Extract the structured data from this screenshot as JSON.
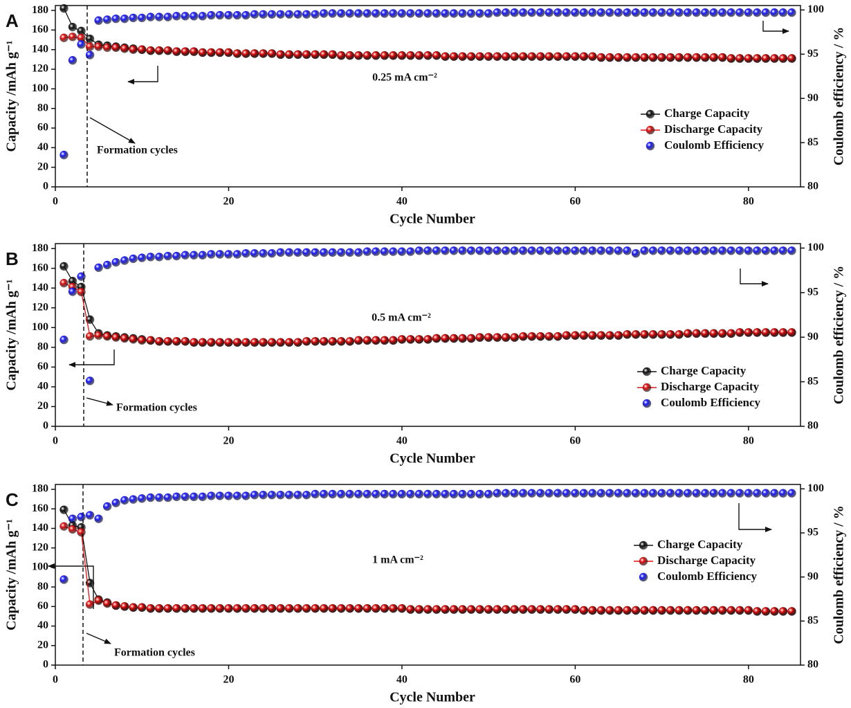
{
  "chart_data": [
    {
      "type": "line",
      "panel": "A",
      "xlabel": "Cycle Number",
      "ylabel": "Capacity /mAh g⁻¹",
      "y2label": "Coulomb efficiency / %",
      "annotations": [
        "0.25 mA cm⁻²",
        "Formation cycles"
      ],
      "legend": "right",
      "xlim": [
        0,
        86
      ],
      "xticks": [
        0,
        20,
        40,
        60,
        80
      ],
      "ylim": [
        0,
        185
      ],
      "yticks": [
        0,
        20,
        40,
        60,
        80,
        100,
        120,
        140,
        160,
        180
      ],
      "y2lim": [
        80,
        100.5
      ],
      "y2ticks": [
        80,
        85,
        90,
        95,
        100
      ],
      "x": [
        1,
        2,
        3,
        4,
        5,
        6,
        7,
        8,
        9,
        10,
        11,
        12,
        13,
        14,
        15,
        16,
        17,
        18,
        19,
        20,
        21,
        22,
        23,
        24,
        25,
        26,
        27,
        28,
        29,
        30,
        31,
        32,
        33,
        34,
        35,
        36,
        37,
        38,
        39,
        40,
        41,
        42,
        43,
        44,
        45,
        46,
        47,
        48,
        49,
        50,
        51,
        52,
        53,
        54,
        55,
        56,
        57,
        58,
        59,
        60,
        61,
        62,
        63,
        64,
        65,
        66,
        67,
        68,
        69,
        70,
        71,
        72,
        73,
        74,
        75,
        76,
        77,
        78,
        79,
        80,
        81,
        82,
        83,
        84,
        85
      ],
      "series": [
        {
          "name": "Charge Capacity",
          "color": "#111111",
          "mode": "lines+markers",
          "values": [
            182,
            163,
            159,
            151,
            145,
            144,
            143,
            142,
            141,
            140,
            139,
            139,
            139,
            138,
            138,
            138,
            137,
            137,
            137,
            137,
            136,
            136,
            136,
            136,
            136,
            135,
            135,
            135,
            135,
            135,
            135,
            135,
            134,
            134,
            134,
            134,
            134,
            134,
            134,
            134,
            134,
            134,
            134,
            134,
            133,
            133,
            133,
            133,
            133,
            133,
            133,
            133,
            133,
            133,
            133,
            133,
            133,
            133,
            133,
            133,
            133,
            133,
            132,
            132,
            132,
            132,
            132,
            132,
            132,
            132,
            132,
            132,
            132,
            132,
            132,
            132,
            132,
            131,
            131,
            131,
            131,
            131,
            131,
            131,
            131
          ]
        },
        {
          "name": "Discharge Capacity",
          "color": "#e01010",
          "mode": "lines+markers",
          "values": [
            152,
            153,
            152,
            143,
            143,
            142,
            142,
            141,
            140,
            140,
            139,
            139,
            139,
            138,
            138,
            138,
            137,
            137,
            137,
            137,
            136,
            136,
            136,
            136,
            136,
            135,
            135,
            135,
            135,
            135,
            135,
            135,
            134,
            134,
            134,
            134,
            134,
            134,
            134,
            134,
            134,
            134,
            134,
            134,
            133,
            133,
            133,
            133,
            133,
            133,
            133,
            133,
            133,
            133,
            133,
            133,
            133,
            133,
            133,
            133,
            133,
            133,
            132,
            132,
            132,
            132,
            132,
            132,
            132,
            132,
            132,
            132,
            132,
            132,
            132,
            132,
            132,
            131,
            131,
            131,
            131,
            131,
            131,
            131,
            131
          ]
        },
        {
          "name": "Coulomb Efficiency",
          "color": "#1a1aff",
          "mode": "markers",
          "axis": "y2",
          "values": [
            83.6,
            94.3,
            96.1,
            94.9,
            98.8,
            98.9,
            99.0,
            99.0,
            99.1,
            99.1,
            99.2,
            99.2,
            99.2,
            99.3,
            99.3,
            99.3,
            99.3,
            99.4,
            99.4,
            99.4,
            99.4,
            99.4,
            99.5,
            99.5,
            99.5,
            99.5,
            99.5,
            99.5,
            99.5,
            99.5,
            99.6,
            99.6,
            99.6,
            99.6,
            99.6,
            99.6,
            99.6,
            99.6,
            99.6,
            99.6,
            99.6,
            99.6,
            99.6,
            99.6,
            99.6,
            99.6,
            99.6,
            99.6,
            99.6,
            99.6,
            99.7,
            99.7,
            99.7,
            99.7,
            99.7,
            99.7,
            99.7,
            99.7,
            99.7,
            99.7,
            99.7,
            99.7,
            99.7,
            99.7,
            99.7,
            99.7,
            99.7,
            99.7,
            99.7,
            99.7,
            99.7,
            99.7,
            99.7,
            99.7,
            99.7,
            99.7,
            99.7,
            99.7,
            99.7,
            99.7,
            99.7,
            99.7,
            99.7,
            99.7,
            99.7
          ]
        }
      ]
    },
    {
      "type": "line",
      "panel": "B",
      "xlabel": "Cycle Number",
      "ylabel": "Capacity /mAh g⁻¹",
      "y2label": "Coulomb efficiency / %",
      "annotations": [
        "0.5 mA cm⁻²",
        "Formation cycles"
      ],
      "legend": "right",
      "xlim": [
        0,
        86
      ],
      "xticks": [
        0,
        20,
        40,
        60,
        80
      ],
      "ylim": [
        0,
        185
      ],
      "yticks": [
        0,
        20,
        40,
        60,
        80,
        100,
        120,
        140,
        160,
        180
      ],
      "y2lim": [
        80,
        100.5
      ],
      "y2ticks": [
        80,
        85,
        90,
        95,
        100
      ],
      "x": [
        1,
        2,
        3,
        4,
        5,
        6,
        7,
        8,
        9,
        10,
        11,
        12,
        13,
        14,
        15,
        16,
        17,
        18,
        19,
        20,
        21,
        22,
        23,
        24,
        25,
        26,
        27,
        28,
        29,
        30,
        31,
        32,
        33,
        34,
        35,
        36,
        37,
        38,
        39,
        40,
        41,
        42,
        43,
        44,
        45,
        46,
        47,
        48,
        49,
        50,
        51,
        52,
        53,
        54,
        55,
        56,
        57,
        58,
        59,
        60,
        61,
        62,
        63,
        64,
        65,
        66,
        67,
        68,
        69,
        70,
        71,
        72,
        73,
        74,
        75,
        76,
        77,
        78,
        79,
        80,
        81,
        82,
        83,
        84,
        85
      ],
      "series": [
        {
          "name": "Charge Capacity",
          "color": "#111111",
          "mode": "lines+markers",
          "values": [
            162,
            147,
            141,
            108,
            94,
            92,
            91,
            90,
            89,
            88,
            87,
            86,
            86,
            86,
            86,
            85,
            85,
            85,
            85,
            85,
            85,
            85,
            85,
            85,
            85,
            85,
            85,
            85,
            86,
            86,
            86,
            86,
            86,
            86,
            87,
            87,
            87,
            87,
            87,
            88,
            88,
            88,
            88,
            89,
            89,
            89,
            89,
            89,
            90,
            90,
            90,
            90,
            90,
            91,
            91,
            91,
            91,
            91,
            92,
            92,
            92,
            92,
            92,
            92,
            92,
            93,
            93,
            93,
            93,
            93,
            93,
            93,
            94,
            94,
            94,
            94,
            94,
            94,
            95,
            95,
            95,
            95,
            95,
            95,
            95
          ]
        },
        {
          "name": "Discharge Capacity",
          "color": "#e01010",
          "mode": "lines+markers",
          "values": [
            145,
            141,
            136,
            91,
            92,
            91,
            90,
            89,
            88,
            87,
            87,
            86,
            86,
            86,
            86,
            85,
            85,
            85,
            85,
            85,
            85,
            85,
            85,
            85,
            85,
            85,
            85,
            85,
            86,
            86,
            86,
            86,
            86,
            86,
            87,
            87,
            87,
            87,
            87,
            88,
            88,
            88,
            88,
            89,
            89,
            89,
            89,
            89,
            90,
            90,
            90,
            90,
            90,
            91,
            91,
            91,
            91,
            91,
            92,
            92,
            92,
            92,
            92,
            92,
            92,
            93,
            93,
            93,
            93,
            93,
            93,
            93,
            94,
            94,
            94,
            94,
            94,
            94,
            95,
            95,
            95,
            95,
            95,
            95,
            95
          ]
        },
        {
          "name": "Coulomb Efficiency",
          "color": "#1a1aff",
          "mode": "markers",
          "axis": "y2",
          "values": [
            89.7,
            95.1,
            96.8,
            85.1,
            97.8,
            98.1,
            98.4,
            98.6,
            98.8,
            98.9,
            99.0,
            99.0,
            99.1,
            99.1,
            99.2,
            99.2,
            99.2,
            99.3,
            99.3,
            99.3,
            99.3,
            99.4,
            99.4,
            99.4,
            99.4,
            99.5,
            99.5,
            99.5,
            99.5,
            99.5,
            99.5,
            99.5,
            99.5,
            99.5,
            99.5,
            99.6,
            99.6,
            99.6,
            99.6,
            99.6,
            99.6,
            99.7,
            99.7,
            99.7,
            99.7,
            99.7,
            99.7,
            99.7,
            99.7,
            99.7,
            99.7,
            99.7,
            99.7,
            99.7,
            99.7,
            99.7,
            99.7,
            99.7,
            99.7,
            99.7,
            99.7,
            99.7,
            99.7,
            99.7,
            99.7,
            99.7,
            99.4,
            99.7,
            99.7,
            99.7,
            99.7,
            99.7,
            99.7,
            99.7,
            99.7,
            99.7,
            99.7,
            99.7,
            99.7,
            99.7,
            99.7,
            99.7,
            99.7,
            99.7,
            99.7
          ]
        }
      ]
    },
    {
      "type": "line",
      "panel": "C",
      "xlabel": "Cycle Number",
      "ylabel": "Capacity /mAh g⁻¹",
      "y2label": "Coulomb efficiency / %",
      "annotations": [
        "1 mA cm⁻²",
        "Formation cycles"
      ],
      "legend": "right",
      "xlim": [
        0,
        86
      ],
      "xticks": [
        0,
        20,
        40,
        60,
        80
      ],
      "ylim": [
        0,
        185
      ],
      "yticks": [
        0,
        20,
        40,
        60,
        80,
        100,
        120,
        140,
        160,
        180
      ],
      "y2lim": [
        80,
        100.5
      ],
      "y2ticks": [
        80,
        85,
        90,
        95,
        100
      ],
      "x": [
        1,
        2,
        3,
        4,
        5,
        6,
        7,
        8,
        9,
        10,
        11,
        12,
        13,
        14,
        15,
        16,
        17,
        18,
        19,
        20,
        21,
        22,
        23,
        24,
        25,
        26,
        27,
        28,
        29,
        30,
        31,
        32,
        33,
        34,
        35,
        36,
        37,
        38,
        39,
        40,
        41,
        42,
        43,
        44,
        45,
        46,
        47,
        48,
        49,
        50,
        51,
        52,
        53,
        54,
        55,
        56,
        57,
        58,
        59,
        60,
        61,
        62,
        63,
        64,
        65,
        66,
        67,
        68,
        69,
        70,
        71,
        72,
        73,
        74,
        75,
        76,
        77,
        78,
        79,
        80,
        81,
        82,
        83,
        84,
        85
      ],
      "series": [
        {
          "name": "Charge Capacity",
          "color": "#111111",
          "mode": "lines+markers",
          "values": [
            159,
            143,
            141,
            84,
            67,
            64,
            61,
            60,
            59,
            59,
            58,
            58,
            58,
            58,
            58,
            58,
            58,
            58,
            58,
            58,
            58,
            58,
            58,
            58,
            58,
            58,
            58,
            58,
            58,
            58,
            58,
            58,
            58,
            58,
            58,
            58,
            58,
            58,
            58,
            58,
            57,
            57,
            57,
            57,
            57,
            57,
            57,
            57,
            57,
            57,
            57,
            57,
            57,
            57,
            57,
            57,
            57,
            57,
            57,
            57,
            56,
            56,
            56,
            56,
            56,
            56,
            56,
            56,
            56,
            56,
            56,
            56,
            56,
            56,
            56,
            56,
            56,
            56,
            56,
            56,
            55,
            55,
            55,
            55,
            55
          ]
        },
        {
          "name": "Discharge Capacity",
          "color": "#e01010",
          "mode": "lines+markers",
          "values": [
            142,
            139,
            136,
            62,
            66,
            63,
            61,
            60,
            59,
            59,
            58,
            58,
            58,
            58,
            58,
            58,
            58,
            58,
            58,
            58,
            58,
            58,
            58,
            58,
            58,
            58,
            58,
            58,
            58,
            58,
            58,
            58,
            58,
            58,
            58,
            58,
            58,
            58,
            58,
            58,
            57,
            57,
            57,
            57,
            57,
            57,
            57,
            57,
            57,
            57,
            57,
            57,
            57,
            57,
            57,
            57,
            57,
            57,
            57,
            57,
            56,
            56,
            56,
            56,
            56,
            56,
            56,
            56,
            56,
            56,
            56,
            56,
            56,
            56,
            56,
            56,
            56,
            56,
            56,
            56,
            55,
            55,
            55,
            55,
            55
          ]
        },
        {
          "name": "Coulomb Efficiency",
          "color": "#1a1aff",
          "mode": "markers",
          "axis": "y2",
          "values": [
            89.7,
            96.6,
            96.8,
            97.0,
            96.6,
            98.0,
            98.4,
            98.7,
            98.8,
            98.9,
            99.0,
            99.0,
            99.0,
            99.1,
            99.1,
            99.1,
            99.1,
            99.2,
            99.2,
            99.2,
            99.2,
            99.2,
            99.3,
            99.3,
            99.3,
            99.3,
            99.3,
            99.3,
            99.3,
            99.4,
            99.4,
            99.4,
            99.4,
            99.4,
            99.4,
            99.4,
            99.4,
            99.4,
            99.4,
            99.4,
            99.4,
            99.4,
            99.4,
            99.4,
            99.4,
            99.4,
            99.4,
            99.4,
            99.4,
            99.4,
            99.5,
            99.5,
            99.5,
            99.5,
            99.5,
            99.5,
            99.5,
            99.5,
            99.5,
            99.5,
            99.5,
            99.5,
            99.5,
            99.5,
            99.5,
            99.5,
            99.5,
            99.5,
            99.5,
            99.5,
            99.5,
            99.5,
            99.5,
            99.5,
            99.5,
            99.5,
            99.5,
            99.5,
            99.5,
            99.5,
            99.5,
            99.5,
            99.5,
            99.5,
            99.5
          ]
        }
      ]
    }
  ]
}
